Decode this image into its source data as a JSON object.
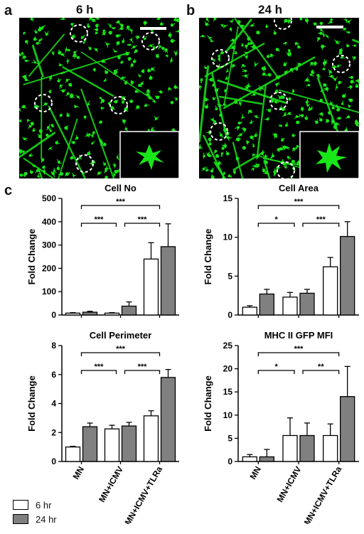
{
  "panels": {
    "a": {
      "letter": "a",
      "title": "6 h"
    },
    "b": {
      "letter": "b",
      "title": "24 h"
    },
    "c": {
      "letter": "c"
    }
  },
  "colors": {
    "six_hr": "#ffffff",
    "twentyfour_hr": "#808080",
    "micrograph_bg": "#000000",
    "cell": "#19e619"
  },
  "legend": [
    {
      "label": "6 hr",
      "color": "#ffffff"
    },
    {
      "label": "24 hr",
      "color": "#808080"
    }
  ],
  "chart_data": [
    {
      "type": "bar",
      "title": "Cell No",
      "ylabel": "Fold Change",
      "categories": [
        "MN",
        "MN+ICMV",
        "MN+ICMV+TLRa"
      ],
      "series": [
        {
          "name": "6 hr",
          "values": [
            8,
            8,
            240
          ],
          "errors": [
            2,
            2,
            70
          ]
        },
        {
          "name": "24 hr",
          "values": [
            12,
            38,
            293
          ],
          "errors": [
            4,
            18,
            98
          ]
        }
      ],
      "ylim": [
        0,
        500
      ],
      "yticks": [
        0,
        100,
        200,
        300,
        400,
        500
      ],
      "significance": [
        {
          "from": 0,
          "to": 2,
          "label": "***"
        },
        {
          "from": 0,
          "to": 1,
          "label": "***"
        },
        {
          "from": 1,
          "to": 2,
          "label": "***"
        }
      ]
    },
    {
      "type": "bar",
      "title": "Cell Area",
      "ylabel": "Fold Change",
      "categories": [
        "MN",
        "MN+ICMV",
        "MN+ICMV+TLRa"
      ],
      "series": [
        {
          "name": "6 hr",
          "values": [
            1,
            2.3,
            6.2
          ],
          "errors": [
            0.2,
            0.6,
            1.2
          ]
        },
        {
          "name": "24 hr",
          "values": [
            2.7,
            2.8,
            10.1
          ],
          "errors": [
            0.6,
            0.5,
            1.9
          ]
        }
      ],
      "ylim": [
        0,
        15
      ],
      "yticks": [
        0,
        5,
        10,
        15
      ],
      "significance": [
        {
          "from": 0,
          "to": 2,
          "label": "***"
        },
        {
          "from": 0,
          "to": 1,
          "label": "*"
        },
        {
          "from": 1,
          "to": 2,
          "label": "***"
        }
      ]
    },
    {
      "type": "bar",
      "title": "Cell Perimeter",
      "ylabel": "Fold Change",
      "categories": [
        "MN",
        "MN+ICMV",
        "MN+ICMV+TLRa"
      ],
      "series": [
        {
          "name": "6 hr",
          "values": [
            1,
            2.25,
            3.15
          ],
          "errors": [
            0.05,
            0.25,
            0.35
          ]
        },
        {
          "name": "24 hr",
          "values": [
            2.4,
            2.45,
            5.8
          ],
          "errors": [
            0.25,
            0.25,
            0.55
          ]
        }
      ],
      "ylim": [
        0,
        8
      ],
      "yticks": [
        0,
        2,
        4,
        6,
        8
      ],
      "significance": [
        {
          "from": 0,
          "to": 2,
          "label": "***"
        },
        {
          "from": 0,
          "to": 1,
          "label": "***"
        },
        {
          "from": 1,
          "to": 2,
          "label": "***"
        }
      ]
    },
    {
      "type": "bar",
      "title": "MHC II GFP MFI",
      "ylabel": "Fold Change",
      "categories": [
        "MN",
        "MN+ICMV",
        "MN+ICMV+TLRa"
      ],
      "series": [
        {
          "name": "6 hr",
          "values": [
            1,
            5.6,
            5.6
          ],
          "errors": [
            0.5,
            3.8,
            2.5
          ]
        },
        {
          "name": "24 hr",
          "values": [
            1,
            5.6,
            14
          ],
          "errors": [
            1.6,
            2.7,
            6.5
          ]
        }
      ],
      "ylim": [
        0,
        25
      ],
      "yticks": [
        0,
        5,
        10,
        15,
        20,
        25
      ],
      "significance": [
        {
          "from": 0,
          "to": 2,
          "label": "***"
        },
        {
          "from": 0,
          "to": 1,
          "label": "*"
        },
        {
          "from": 1,
          "to": 2,
          "label": "**"
        }
      ]
    }
  ]
}
